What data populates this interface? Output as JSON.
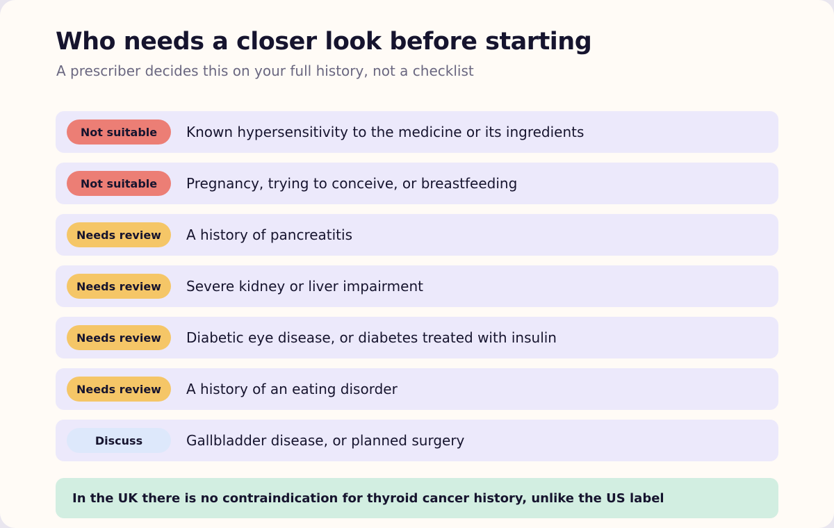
{
  "header": {
    "title": "Who needs a closer look before starting",
    "subtitle": "A prescriber decides this on your full history, not a checklist"
  },
  "rows": [
    {
      "badge": "Not suitable",
      "badge_color": "#ec7e75",
      "text": "Known hypersensitivity to the medicine or its ingredients"
    },
    {
      "badge": "Not suitable",
      "badge_color": "#ec7e75",
      "text": "Pregnancy, trying to conceive, or breastfeeding"
    },
    {
      "badge": "Needs review",
      "badge_color": "#f5c667",
      "text": "A history of pancreatitis"
    },
    {
      "badge": "Needs review",
      "badge_color": "#f5c667",
      "text": "Severe kidney or liver impairment"
    },
    {
      "badge": "Needs review",
      "badge_color": "#f5c667",
      "text": "Diabetic eye disease, or diabetes treated with insulin"
    },
    {
      "badge": "Needs review",
      "badge_color": "#f5c667",
      "text": "A history of an eating disorder"
    },
    {
      "badge": "Discuss",
      "badge_color": "#dde8fb",
      "text": "Gallbladder disease, or planned surgery"
    }
  ],
  "note": {
    "text": "In the UK there is no contraindication for thyroid cancer history, unlike the US label",
    "color": "#d2eee1"
  }
}
